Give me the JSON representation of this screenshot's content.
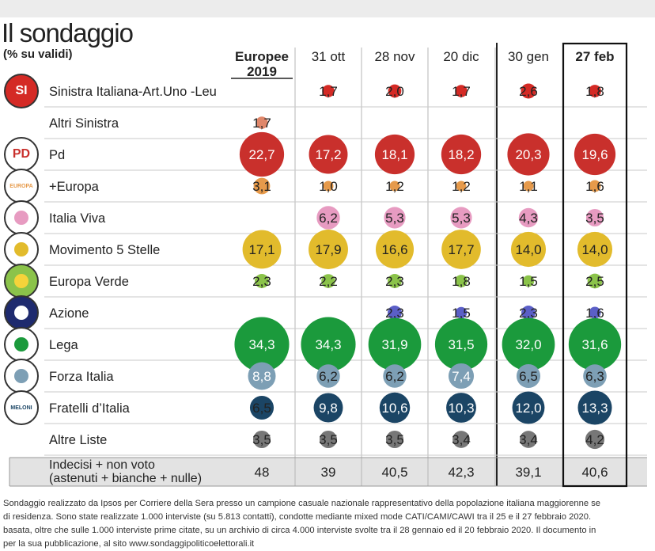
{
  "header": {
    "title": "Il sondaggio",
    "subtitle": "(% su validi)"
  },
  "chart_data": {
    "type": "table",
    "columns": [
      {
        "label": "Europee",
        "label2": "2019",
        "bold": true
      },
      {
        "label": "31 ott",
        "label2": "",
        "bold": false
      },
      {
        "label": "28 nov",
        "label2": "",
        "bold": false
      },
      {
        "label": "20 dic",
        "label2": "",
        "bold": false
      },
      {
        "label": "30 gen",
        "label2": "",
        "bold": false
      },
      {
        "label": "27 feb",
        "label2": "",
        "bold": true
      }
    ],
    "rows": [
      {
        "party": "Sinistra Italiana-Art.Uno -Leu",
        "color": "#d42a25",
        "values": [
          null,
          1.7,
          2.0,
          1.7,
          2.6,
          1.8
        ],
        "labels": [
          "",
          "1,7",
          "2,0",
          "1,7",
          "2,6",
          "1,8"
        ]
      },
      {
        "party": "Altri Sinistra",
        "color": "#e0876a",
        "values": [
          1.7,
          null,
          null,
          null,
          null,
          null
        ],
        "labels": [
          "1,7",
          "",
          "",
          "",
          "",
          ""
        ]
      },
      {
        "party": "Pd",
        "color": "#c9302c",
        "values": [
          22.7,
          17.2,
          18.1,
          18.2,
          20.3,
          19.6
        ],
        "labels": [
          "22,7",
          "17,2",
          "18,1",
          "18,2",
          "20,3",
          "19,6"
        ]
      },
      {
        "party": "+Europa",
        "color": "#e69a4b",
        "values": [
          3.1,
          1.0,
          1.2,
          1.2,
          1.1,
          1.6
        ],
        "labels": [
          "3,1",
          "1,0",
          "1,2",
          "1,2",
          "1,1",
          "1,6"
        ]
      },
      {
        "party": "Italia Viva",
        "color": "#e79bc1",
        "values": [
          null,
          6.2,
          5.3,
          5.3,
          4.3,
          3.5
        ],
        "labels": [
          "",
          "6,2",
          "5,3",
          "5,3",
          "4,3",
          "3,5"
        ]
      },
      {
        "party": "Movimento 5 Stelle",
        "color": "#e2bb2c",
        "values": [
          17.1,
          17.9,
          16.6,
          17.7,
          14.0,
          14.0
        ],
        "labels": [
          "17,1",
          "17,9",
          "16,6",
          "17,7",
          "14,0",
          "14,0"
        ]
      },
      {
        "party": "Europa Verde",
        "color": "#8bc34a",
        "values": [
          2.3,
          2.2,
          2.3,
          1.8,
          1.5,
          2.5
        ],
        "labels": [
          "2,3",
          "2,2",
          "2,3",
          "1,8",
          "1,5",
          "2,5"
        ]
      },
      {
        "party": "Azione",
        "color": "#5b5fc7",
        "values": [
          null,
          null,
          2.3,
          1.5,
          2.3,
          1.6
        ],
        "labels": [
          "",
          "",
          "2,3",
          "1,5",
          "2,3",
          "1,6"
        ]
      },
      {
        "party": "Lega",
        "color": "#1b9a3c",
        "values": [
          34.3,
          34.3,
          31.9,
          31.5,
          32.0,
          31.6
        ],
        "labels": [
          "34,3",
          "34,3",
          "31,9",
          "31,5",
          "32,0",
          "31,6"
        ]
      },
      {
        "party": "Forza Italia",
        "color": "#7d9fb5",
        "values": [
          8.8,
          6.2,
          6.2,
          7.4,
          6.5,
          6.3
        ],
        "labels": [
          "8,8",
          "6,2",
          "6,2",
          "7,4",
          "6,5",
          "6,3"
        ]
      },
      {
        "party": "Fratelli d’Italia",
        "color": "#1b4565",
        "values": [
          6.5,
          9.8,
          10.6,
          10.3,
          12.0,
          13.3
        ],
        "labels": [
          "6,5",
          "9,8",
          "10,6",
          "10,3",
          "12,0",
          "13,3"
        ]
      },
      {
        "party": "Altre Liste",
        "color": "#777777",
        "values": [
          3.5,
          3.5,
          3.5,
          3.4,
          3.4,
          4.2
        ],
        "labels": [
          "3,5",
          "3,5",
          "3,5",
          "3,4",
          "3,4",
          "4,2"
        ]
      }
    ],
    "undecided": {
      "label_line1": "Indecisi  + non voto",
      "label_line2": "(astenuti  + bianche  + nulle)",
      "values": [
        48,
        39,
        40.5,
        42.3,
        39.1,
        40.6
      ],
      "labels": [
        "48",
        "39",
        "40,5",
        "42,3",
        "39,1",
        "40,6"
      ]
    }
  },
  "logos": [
    {
      "row": 0,
      "icon": "sinistra-italiana-logo",
      "text": "SI"
    },
    {
      "row": 2,
      "icon": "pd-logo",
      "text": "PD"
    },
    {
      "row": 3,
      "icon": "piu-europa-logo",
      "text": "EUROPA"
    },
    {
      "row": 4,
      "icon": "italia-viva-logo",
      "text": ""
    },
    {
      "row": 5,
      "icon": "movimento-5-stelle-logo",
      "text": ""
    },
    {
      "row": 6,
      "icon": "europa-verde-logo",
      "text": ""
    },
    {
      "row": 7,
      "icon": "azione-logo",
      "text": ""
    },
    {
      "row": 8,
      "icon": "lega-logo",
      "text": ""
    },
    {
      "row": 9,
      "icon": "forza-italia-logo",
      "text": ""
    },
    {
      "row": 10,
      "icon": "fratelli-italia-logo",
      "text": "MELONI"
    }
  ],
  "footer": {
    "line1": "Sondaggio realizzato da Ipsos per Corriere della Sera presso un campione casuale nazionale rappresentativo della popolazione italiana maggiorenne se",
    "line2": "di residenza. Sono state realizzate 1.000 interviste (su 5.813 contatti), condotte mediante mixed mode CATI/CAMI/CAWI  tra il 25 e il 27 febbraio 2020.",
    "line3": "basata, oltre che sulle 1.000 interviste prime citate, su un archivio di circa 4.000 interviste svolte tra il 28 gennaio ed il 20 febbraio 2020. Il documento in",
    "line4": "per la sua pubblicazione, al sito www.sondaggipoliticoelettorali.it"
  }
}
